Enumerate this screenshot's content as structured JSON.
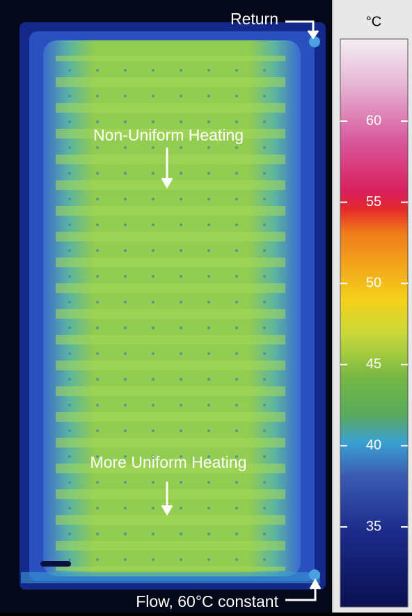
{
  "annotations": {
    "return": "Return",
    "non_uniform": "Non-Uniform Heating",
    "more_uniform": "More Uniform Heating",
    "flow": "Flow, 60°C constant"
  },
  "colorbar": {
    "unit": "°C",
    "ticks": [
      60,
      55,
      50,
      45,
      40,
      35
    ]
  }
}
